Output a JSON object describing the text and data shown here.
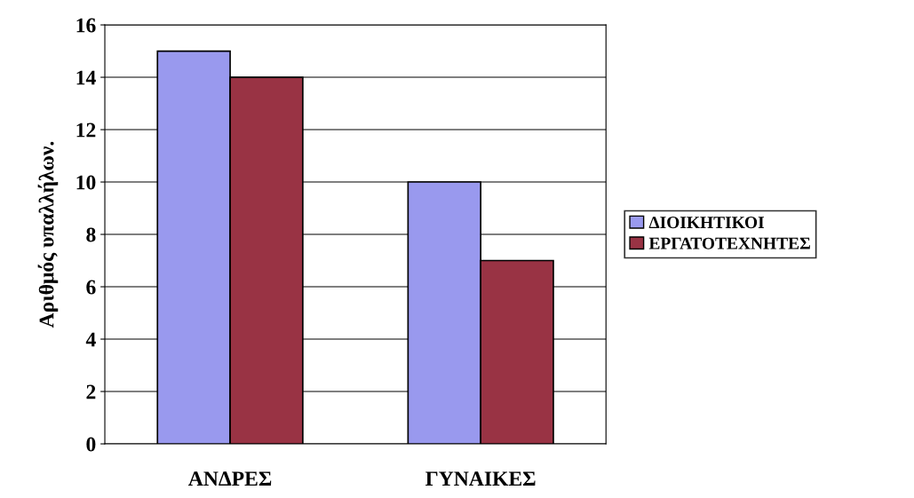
{
  "chart_data": {
    "type": "bar",
    "ylabel": "Αριθμός υπαλλήλων.",
    "categories": [
      "ΑΝΔΡΕΣ",
      "ΓΥΝΑΙΚΕΣ"
    ],
    "series": [
      {
        "name": "ΔΙΟΙΚΗΤΙΚΟΙ",
        "color": "#9999ee",
        "values": [
          15,
          10
        ]
      },
      {
        "name": "ΕΡΓΑΤΟΤΕΧΝΗΤΕΣ",
        "color": "#993344",
        "values": [
          14,
          7
        ]
      }
    ],
    "ylim": [
      0,
      16
    ],
    "yticks": [
      0,
      2,
      4,
      6,
      8,
      10,
      12,
      14,
      16
    ],
    "grid": "y",
    "legend": "right"
  }
}
